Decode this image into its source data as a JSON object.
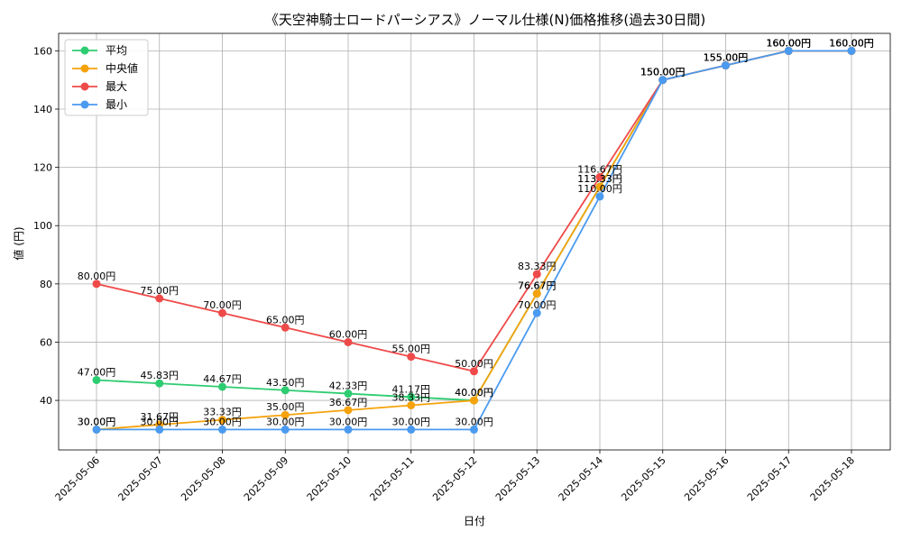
{
  "chart_data": {
    "type": "line",
    "title": "《天空神騎士ロードパーシアス》ノーマル仕様(N)価格推移(過去30日間)",
    "xlabel": "日付",
    "ylabel": "値 (円)",
    "ylim": [
      23,
      166
    ],
    "yticks": [
      40,
      60,
      80,
      100,
      120,
      140,
      160
    ],
    "grid": true,
    "legend_position": "top-left",
    "label_suffix": "円",
    "categories": [
      "2025-05-06",
      "2025-05-07",
      "2025-05-08",
      "2025-05-09",
      "2025-05-10",
      "2025-05-11",
      "2025-05-12",
      "2025-05-13",
      "2025-05-14",
      "2025-05-15",
      "2025-05-16",
      "2025-05-17",
      "2025-05-18"
    ],
    "series": [
      {
        "name": "平均",
        "color": "#2ecc71",
        "values": [
          47.0,
          45.83,
          44.67,
          43.5,
          42.33,
          41.17,
          40.0,
          76.67,
          113.33,
          150.0,
          155.0,
          160.0,
          160.0
        ]
      },
      {
        "name": "中央値",
        "color": "#f5a20c",
        "values": [
          30.0,
          31.67,
          33.33,
          35.0,
          36.67,
          38.33,
          40.0,
          76.67,
          113.33,
          150.0,
          155.0,
          160.0,
          160.0
        ]
      },
      {
        "name": "最大",
        "color": "#ef4a4a",
        "values": [
          80.0,
          75.0,
          70.0,
          65.0,
          60.0,
          55.0,
          50.0,
          83.33,
          116.67,
          150.0,
          155.0,
          160.0,
          160.0
        ]
      },
      {
        "name": "最小",
        "color": "#4a9af0",
        "values": [
          30.0,
          30.0,
          30.0,
          30.0,
          30.0,
          30.0,
          30.0,
          70.0,
          110.0,
          150.0,
          155.0,
          160.0,
          160.0
        ]
      }
    ]
  }
}
